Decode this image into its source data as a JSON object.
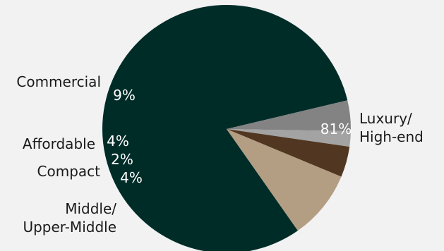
{
  "chart_data": {
    "type": "pie",
    "title": "",
    "slices": [
      {
        "label": "Luxury/ High-end",
        "label_lines": [
          "Luxury/",
          "High-end"
        ],
        "value": 81,
        "value_label": "81%",
        "color": "#002c28"
      },
      {
        "label": "Middle/ Upper-Middle",
        "label_lines": [
          "Middle/",
          "Upper-Middle"
        ],
        "value": 4,
        "value_label": "4%",
        "color": "#838383"
      },
      {
        "label": "Compact",
        "label_lines": [
          "Compact"
        ],
        "value": 2,
        "value_label": "2%",
        "color": "#a3a3a3"
      },
      {
        "label": "Affordable",
        "label_lines": [
          "Affordable"
        ],
        "value": 4,
        "value_label": "4%",
        "color": "#513721"
      },
      {
        "label": "Commercial",
        "label_lines": [
          "Commercial"
        ],
        "value": 9,
        "value_label": "9%",
        "color": "#b39d83"
      }
    ],
    "legend": "none",
    "labels": "outside",
    "value_labels": "inside",
    "background": "#f2f2f2"
  }
}
